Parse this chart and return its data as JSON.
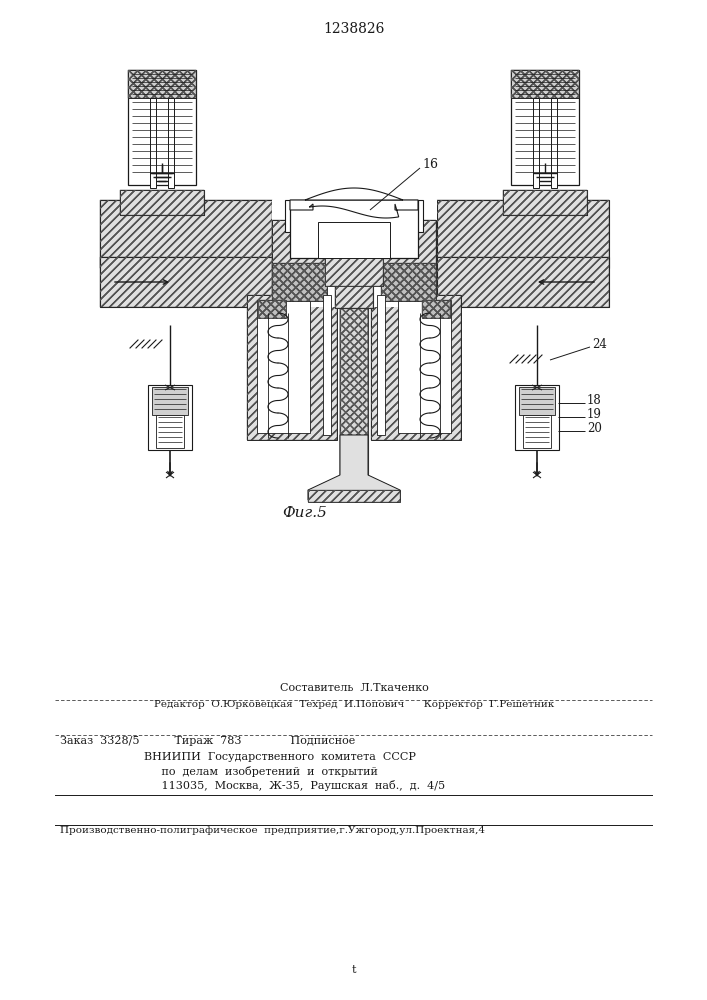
{
  "patent_number": "1238826",
  "fig_label": "Фиг.5",
  "label_16": "16",
  "label_18": "18",
  "label_19": "19",
  "label_20": "20",
  "label_24": "24",
  "footer_sestavitel": "Составитель  Л.Ткаченко",
  "footer_redaktor": "Редактор  О.Юрковецкая  Техред  И.Попович      Корректор  Г.Решетник",
  "footer_zakaz": "Заказ  3328/5          Тираж  783              Подписное",
  "footer_vniip1": "    ВНИИПИ  Государственного  комитета  СССР",
  "footer_vniip2": "         по  делам  изобретений  и  открытий",
  "footer_vniip3": "         113035,  Москва,  Ж-35,  Раушская  наб.,  д.  4/5",
  "footer_prod": "Производственно-полиграфическое  предприятие,г.Ужгород,ул.Проектная,4",
  "bg_color": "#ffffff",
  "line_color": "#1a1a1a"
}
